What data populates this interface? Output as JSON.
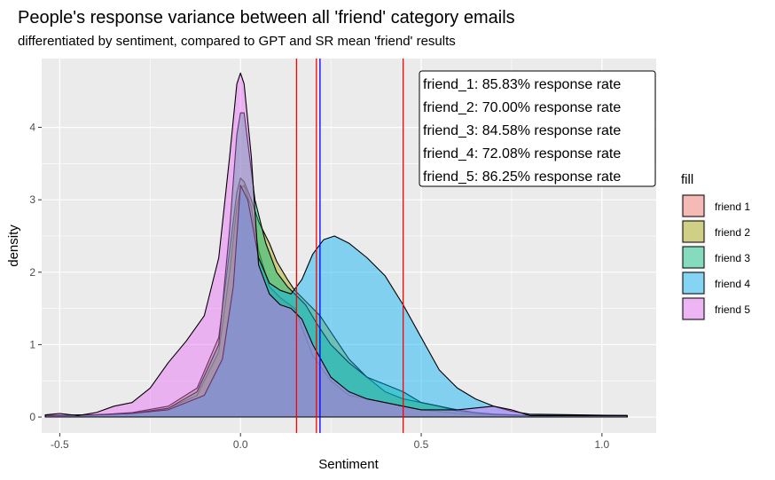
{
  "chart_data": {
    "type": "area",
    "title": "People's response variance between all 'friend' category emails",
    "subtitle": "differentiated by sentiment, compared to GPT and SR mean 'friend' results",
    "xlabel": "Sentiment",
    "ylabel": "density",
    "xlim": [
      -0.55,
      1.15
    ],
    "ylim": [
      -0.22,
      4.95
    ],
    "x_ticks": [
      -0.5,
      0.0,
      0.5,
      1.0
    ],
    "x_tick_labels": [
      "-0.5",
      "0.0",
      "0.5",
      "1.0"
    ],
    "y_ticks": [
      0,
      1,
      2,
      3,
      4
    ],
    "y_tick_labels": [
      "0",
      "1",
      "2",
      "3",
      "4"
    ],
    "grid": true,
    "legend": {
      "title": "fill",
      "position": "right",
      "entries": [
        "friend 1",
        "friend 2",
        "friend 3",
        "friend 4",
        "friend 5"
      ]
    },
    "vlines": [
      {
        "x": 0.155,
        "color": "#ff0000"
      },
      {
        "x": 0.21,
        "color": "#ff0000"
      },
      {
        "x": 0.22,
        "color": "#0000ff"
      },
      {
        "x": 0.45,
        "color": "#ff0000"
      }
    ],
    "annotation": [
      "friend_1: 85.83% response rate",
      "friend_2: 70.00% response rate",
      "friend_3: 84.58% response rate",
      "friend_4: 72.08% response rate",
      "friend_5: 86.25% response rate"
    ],
    "series": [
      {
        "name": "friend 1",
        "color": "#F8766D",
        "x": [
          -0.54,
          -0.4,
          -0.3,
          -0.2,
          -0.12,
          -0.06,
          -0.03,
          -0.01,
          0.0,
          0.01,
          0.03,
          0.05,
          0.08,
          0.11,
          0.15,
          0.2,
          0.25,
          0.3,
          0.35,
          0.4,
          0.5,
          0.6,
          0.7,
          0.8,
          1.07
        ],
        "y": [
          0.02,
          0.03,
          0.05,
          0.12,
          0.3,
          0.9,
          2.0,
          2.9,
          3.15,
          3.2,
          2.9,
          2.3,
          1.8,
          1.65,
          1.5,
          0.85,
          0.5,
          0.3,
          0.25,
          0.2,
          0.1,
          0.05,
          0.03,
          0.02,
          0.02
        ]
      },
      {
        "name": "friend 2",
        "color": "#A3A500",
        "x": [
          -0.54,
          -0.4,
          -0.3,
          -0.2,
          -0.12,
          -0.06,
          -0.03,
          -0.01,
          0.0,
          0.01,
          0.03,
          0.05,
          0.08,
          0.1,
          0.13,
          0.15,
          0.18,
          0.22,
          0.26,
          0.3,
          0.35,
          0.4,
          0.45,
          0.5,
          0.55,
          0.6,
          0.7,
          0.8,
          1.07
        ],
        "y": [
          0.02,
          0.03,
          0.06,
          0.15,
          0.4,
          1.1,
          2.3,
          3.1,
          3.3,
          3.25,
          3.0,
          2.7,
          2.4,
          2.15,
          1.9,
          1.75,
          1.6,
          1.4,
          1.1,
          0.8,
          0.55,
          0.35,
          0.25,
          0.2,
          0.15,
          0.08,
          0.04,
          0.02,
          0.02
        ]
      },
      {
        "name": "friend 3",
        "color": "#00BF7D",
        "x": [
          -0.54,
          -0.4,
          -0.3,
          -0.2,
          -0.12,
          -0.06,
          -0.03,
          -0.01,
          0.0,
          0.01,
          0.02,
          0.04,
          0.07,
          0.1,
          0.13,
          0.15,
          0.18,
          0.21,
          0.25,
          0.3,
          0.35,
          0.4,
          0.45,
          0.5,
          0.55,
          0.6,
          0.65,
          0.7,
          0.8,
          1.07
        ],
        "y": [
          0.02,
          0.03,
          0.05,
          0.12,
          0.35,
          1.0,
          2.6,
          3.9,
          4.2,
          4.2,
          3.8,
          3.0,
          2.4,
          2.0,
          1.8,
          1.7,
          1.55,
          1.3,
          1.0,
          0.75,
          0.55,
          0.45,
          0.35,
          0.2,
          0.15,
          0.1,
          0.06,
          0.04,
          0.02,
          0.02
        ]
      },
      {
        "name": "friend 4",
        "color": "#00B0F6",
        "x": [
          -0.54,
          -0.4,
          -0.3,
          -0.2,
          -0.1,
          -0.05,
          -0.02,
          0.0,
          0.02,
          0.05,
          0.08,
          0.11,
          0.14,
          0.17,
          0.2,
          0.23,
          0.26,
          0.3,
          0.35,
          0.4,
          0.45,
          0.5,
          0.55,
          0.6,
          0.65,
          0.7,
          0.75,
          0.8,
          1.07
        ],
        "y": [
          0.02,
          0.03,
          0.05,
          0.1,
          0.3,
          0.8,
          1.8,
          3.2,
          3.0,
          2.2,
          1.85,
          1.75,
          1.7,
          1.9,
          2.25,
          2.45,
          2.5,
          2.4,
          2.2,
          1.95,
          1.55,
          1.1,
          0.65,
          0.4,
          0.25,
          0.15,
          0.08,
          0.04,
          0.02
        ]
      },
      {
        "name": "friend 5",
        "color": "#E76BF3",
        "x": [
          -0.54,
          -0.5,
          -0.45,
          -0.4,
          -0.35,
          -0.3,
          -0.25,
          -0.2,
          -0.15,
          -0.1,
          -0.06,
          -0.03,
          -0.01,
          0.0,
          0.01,
          0.03,
          0.05,
          0.08,
          0.11,
          0.14,
          0.17,
          0.2,
          0.25,
          0.3,
          0.35,
          0.4,
          0.45,
          0.5,
          0.6,
          0.7,
          0.75,
          0.8,
          1.07
        ],
        "y": [
          0.03,
          0.05,
          0.02,
          0.06,
          0.15,
          0.2,
          0.4,
          0.75,
          1.05,
          1.4,
          2.2,
          3.6,
          4.6,
          4.75,
          4.6,
          3.6,
          2.1,
          1.7,
          1.55,
          1.5,
          1.35,
          1.0,
          0.55,
          0.35,
          0.25,
          0.2,
          0.15,
          0.1,
          0.1,
          0.15,
          0.1,
          0.02,
          0.02
        ]
      }
    ]
  }
}
